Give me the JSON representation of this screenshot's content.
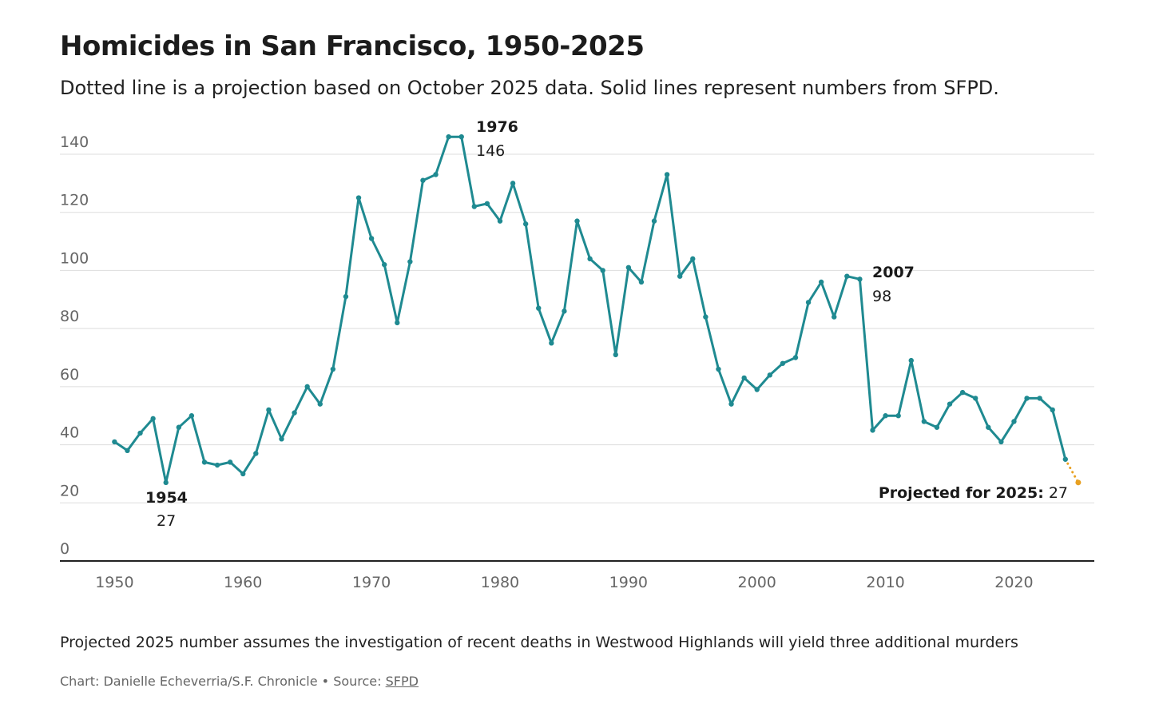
{
  "colors": {
    "line": "#1f8a91",
    "projection": "#e8a020",
    "grid": "#dddddd",
    "axis": "#222222",
    "tick_text": "#666666"
  },
  "header": {
    "title": "Homicides in San Francisco, 1950-2025",
    "subtitle": "Dotted line is a projection based on October 2025 data. Solid lines represent numbers from SFPD."
  },
  "footer": {
    "note": "Projected 2025 number assumes the investigation of recent deaths in Westwood Highlands will yield three additional murders",
    "credit_prefix": "Chart: Danielle Echeverria/S.F. Chronicle • Source: ",
    "source_link": "SFPD"
  },
  "chart_data": {
    "type": "line",
    "title": "Homicides in San Francisco, 1950-2025",
    "xlabel": "",
    "ylabel": "",
    "xlim": [
      1945.75,
      2026.25
    ],
    "ylim": [
      0,
      140
    ],
    "grid": true,
    "x_ticks": [
      1950,
      1960,
      1970,
      1980,
      1990,
      2000,
      2010,
      2020
    ],
    "y_ticks": [
      0,
      20,
      40,
      60,
      80,
      100,
      120,
      140
    ],
    "series": [
      {
        "name": "Homicides (SFPD)",
        "style": "solid",
        "x": [
          1950,
          1951,
          1952,
          1953,
          1954,
          1955,
          1956,
          1957,
          1958,
          1959,
          1960,
          1961,
          1962,
          1963,
          1964,
          1965,
          1966,
          1967,
          1968,
          1969,
          1970,
          1971,
          1972,
          1973,
          1974,
          1975,
          1976,
          1977,
          1978,
          1979,
          1980,
          1981,
          1982,
          1983,
          1984,
          1985,
          1986,
          1987,
          1988,
          1989,
          1990,
          1991,
          1992,
          1993,
          1994,
          1995,
          1996,
          1997,
          1998,
          1999,
          2000,
          2001,
          2002,
          2003,
          2004,
          2005,
          2006,
          2007,
          2008,
          2009,
          2010,
          2011,
          2012,
          2013,
          2014,
          2015,
          2016,
          2017,
          2018,
          2019,
          2020,
          2021,
          2022,
          2023,
          2024
        ],
        "values": [
          41,
          38,
          44,
          49,
          27,
          46,
          50,
          34,
          33,
          34,
          30,
          37,
          52,
          42,
          51,
          60,
          54,
          66,
          91,
          125,
          111,
          102,
          82,
          103,
          131,
          133,
          146,
          146,
          122,
          123,
          117,
          130,
          116,
          87,
          75,
          86,
          117,
          104,
          100,
          71,
          101,
          96,
          117,
          133,
          98,
          104,
          84,
          66,
          54,
          63,
          59,
          64,
          68,
          70,
          89,
          96,
          84,
          98,
          97,
          45,
          50,
          50,
          69,
          48,
          46,
          54,
          58,
          56,
          46,
          41,
          48,
          56,
          56,
          52,
          35
        ]
      },
      {
        "name": "Projection",
        "style": "dotted",
        "x": [
          2024,
          2025
        ],
        "values": [
          35,
          27
        ]
      }
    ],
    "annotations": [
      {
        "year": "1954",
        "value": "27"
      },
      {
        "year": "1976",
        "value": "146"
      },
      {
        "year": "2007",
        "value": "98"
      },
      {
        "label": "Projected for 2025:",
        "value": "27"
      }
    ]
  }
}
